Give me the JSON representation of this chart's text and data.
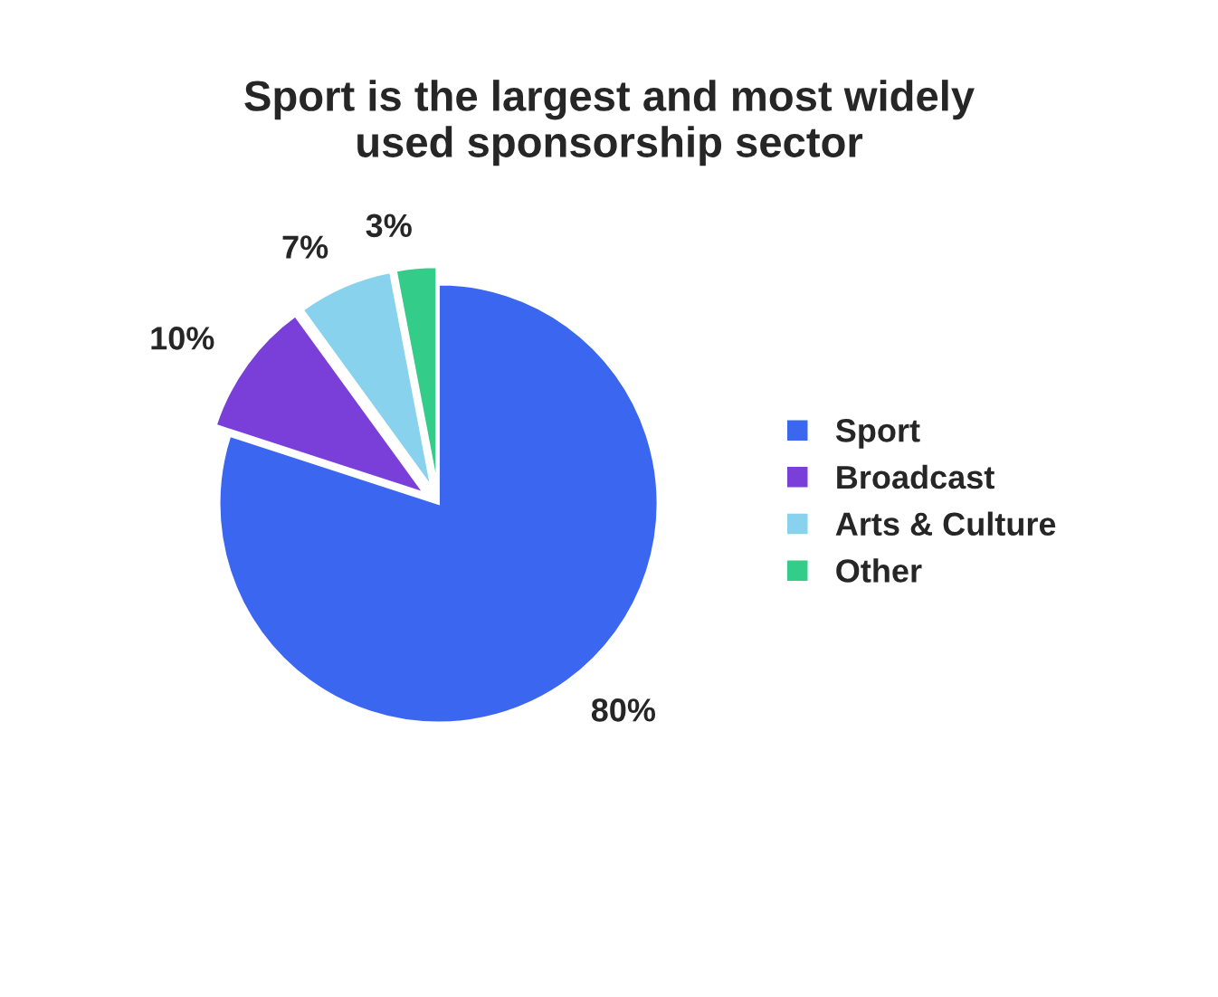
{
  "chart_data": {
    "type": "pie",
    "title": "Sport is the largest and most widely\nused sponsorship sector",
    "categories": [
      "Sport",
      "Broadcast",
      "Arts & Culture",
      "Other"
    ],
    "values": [
      80,
      10,
      7,
      3
    ],
    "colors": [
      "#3a66f0",
      "#7a3fd8",
      "#88d2ee",
      "#33cc88"
    ],
    "value_labels": [
      "80%",
      "10%",
      "7%",
      "3%"
    ],
    "legend": "right"
  }
}
